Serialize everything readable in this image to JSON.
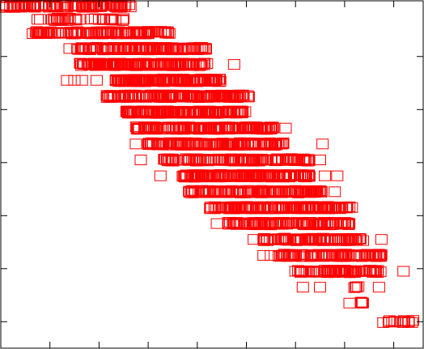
{
  "chart_data": {
    "type": "scatter",
    "title": "",
    "xlabel": "",
    "ylabel": "",
    "grid": false,
    "legend": "none",
    "marker": "square-open",
    "marker_color": "#ff0000",
    "xlim": [
      0,
      8.6
    ],
    "ylim": [
      0,
      6.55
    ],
    "x_ticks": [
      1,
      2,
      3,
      4,
      5,
      6,
      7,
      8
    ],
    "y_ticks": [
      0.5,
      1.5,
      2.5,
      3.5,
      4.5,
      5.5
    ],
    "rows": [
      {
        "y": 6.45,
        "x_min": 0.05,
        "x_max": 2.65,
        "n": 110,
        "outliers": []
      },
      {
        "y": 6.2,
        "x_min": 1.0,
        "x_max": 2.55,
        "n": 32,
        "outliers": [
          0.75,
          0.8
        ]
      },
      {
        "y": 5.95,
        "x_min": 0.65,
        "x_max": 3.45,
        "n": 130,
        "outliers": []
      },
      {
        "y": 5.65,
        "x_min": 1.55,
        "x_max": 4.2,
        "n": 140,
        "outliers": [
          1.4
        ]
      },
      {
        "y": 5.35,
        "x_min": 1.6,
        "x_max": 4.25,
        "n": 160,
        "outliers": [
          4.75
        ]
      },
      {
        "y": 5.05,
        "x_min": 2.3,
        "x_max": 4.5,
        "n": 150,
        "outliers": [
          1.35,
          1.5,
          1.65,
          1.95
        ]
      },
      {
        "y": 4.75,
        "x_min": 2.15,
        "x_max": 5.05,
        "n": 170,
        "outliers": []
      },
      {
        "y": 4.45,
        "x_min": 2.55,
        "x_max": 5.0,
        "n": 160,
        "outliers": []
      },
      {
        "y": 4.15,
        "x_min": 2.75,
        "x_max": 5.55,
        "n": 160,
        "outliers": [
          5.8
        ]
      },
      {
        "y": 3.85,
        "x_min": 3.0,
        "x_max": 5.75,
        "n": 150,
        "outliers": [
          2.75,
          6.55
        ]
      },
      {
        "y": 3.55,
        "x_min": 3.3,
        "x_max": 6.3,
        "n": 140,
        "outliers": [
          2.85,
          6.5
        ]
      },
      {
        "y": 3.25,
        "x_min": 3.7,
        "x_max": 6.3,
        "n": 160,
        "outliers": [
          3.25,
          6.6,
          6.85
        ]
      },
      {
        "y": 2.95,
        "x_min": 3.75,
        "x_max": 6.55,
        "n": 140,
        "outliers": [
          6.8
        ]
      },
      {
        "y": 2.65,
        "x_min": 4.25,
        "x_max": 7.15,
        "n": 150,
        "outliers": []
      },
      {
        "y": 2.35,
        "x_min": 4.6,
        "x_max": 7.1,
        "n": 130,
        "outliers": [
          4.4
        ]
      },
      {
        "y": 2.05,
        "x_min": 5.35,
        "x_max": 7.4,
        "n": 100,
        "outliers": [
          5.15,
          7.75
        ]
      },
      {
        "y": 1.75,
        "x_min": 5.65,
        "x_max": 7.75,
        "n": 100,
        "outliers": [
          5.35,
          5.5
        ]
      },
      {
        "y": 1.45,
        "x_min": 6.05,
        "x_max": 7.8,
        "n": 80,
        "outliers": [
          6.0,
          8.2
        ]
      },
      {
        "y": 1.15,
        "x_min": 7.2,
        "x_max": 7.3,
        "n": 4,
        "outliers": [
          6.15,
          6.5,
          7.7
        ]
      },
      {
        "y": 0.85,
        "x_min": 7.3,
        "x_max": 7.4,
        "n": 4,
        "outliers": [
          7.1
        ]
      },
      {
        "y": 0.5,
        "x_min": 7.75,
        "x_max": 8.4,
        "n": 14,
        "outliers": []
      }
    ]
  }
}
